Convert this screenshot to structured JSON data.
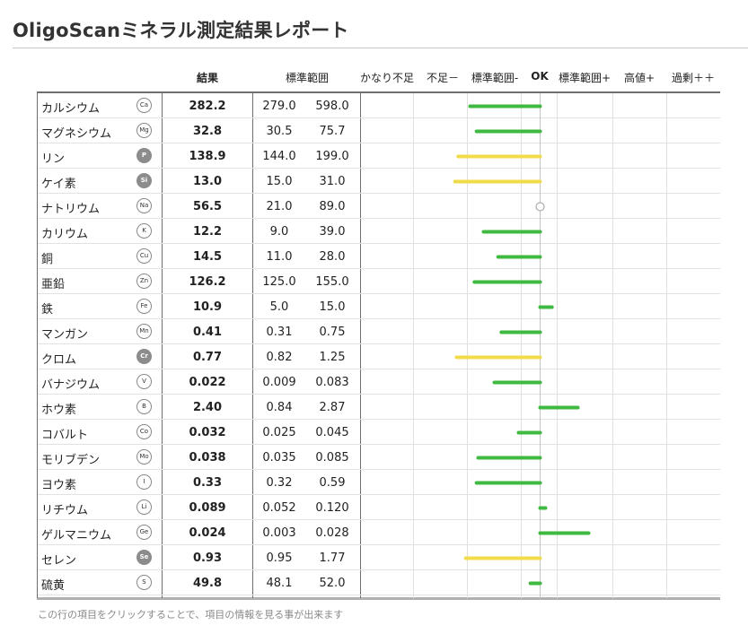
{
  "title": "OligoScanミネラル測定結果レポート",
  "headers": {
    "result": "結果",
    "range": "標準範囲",
    "categories": [
      "かなり不足",
      "不足－",
      "標準範囲-",
      "OK",
      "標準範囲+",
      "高値+",
      "過剰＋＋"
    ]
  },
  "rows": [
    {
      "name": "カルシウム",
      "symbol": "Ca",
      "symbol_filled": false,
      "result": "282.2",
      "low": "279.0",
      "high": "598.0"
    },
    {
      "name": "マグネシウム",
      "symbol": "Mg",
      "symbol_filled": false,
      "result": "32.8",
      "low": "30.5",
      "high": "75.7"
    },
    {
      "name": "リン",
      "symbol": "P",
      "symbol_filled": true,
      "result": "138.9",
      "low": "144.0",
      "high": "199.0"
    },
    {
      "name": "ケイ素",
      "symbol": "Si",
      "symbol_filled": true,
      "result": "13.0",
      "low": "15.0",
      "high": "31.0"
    },
    {
      "name": "ナトリウム",
      "symbol": "Na",
      "symbol_filled": false,
      "result": "56.5",
      "low": "21.0",
      "high": "89.0"
    },
    {
      "name": "カリウム",
      "symbol": "K",
      "symbol_filled": false,
      "result": "12.2",
      "low": "9.0",
      "high": "39.0"
    },
    {
      "name": "銅",
      "symbol": "Cu",
      "symbol_filled": false,
      "result": "14.5",
      "low": "11.0",
      "high": "28.0"
    },
    {
      "name": "亜鉛",
      "symbol": "Zn",
      "symbol_filled": false,
      "result": "126.2",
      "low": "125.0",
      "high": "155.0"
    },
    {
      "name": "鉄",
      "symbol": "Fe",
      "symbol_filled": false,
      "result": "10.9",
      "low": "5.0",
      "high": "15.0"
    },
    {
      "name": "マンガン",
      "symbol": "Mn",
      "symbol_filled": false,
      "result": "0.41",
      "low": "0.31",
      "high": "0.75"
    },
    {
      "name": "クロム",
      "symbol": "Cr",
      "symbol_filled": true,
      "result": "0.77",
      "low": "0.82",
      "high": "1.25"
    },
    {
      "name": "バナジウム",
      "symbol": "V",
      "symbol_filled": false,
      "result": "0.022",
      "low": "0.009",
      "high": "0.083"
    },
    {
      "name": "ホウ素",
      "symbol": "B",
      "symbol_filled": false,
      "result": "2.40",
      "low": "0.84",
      "high": "2.87"
    },
    {
      "name": "コバルト",
      "symbol": "Co",
      "symbol_filled": false,
      "result": "0.032",
      "low": "0.025",
      "high": "0.045"
    },
    {
      "name": "モリブデン",
      "symbol": "Mo",
      "symbol_filled": false,
      "result": "0.038",
      "low": "0.035",
      "high": "0.085"
    },
    {
      "name": "ヨウ素",
      "symbol": "I",
      "symbol_filled": false,
      "result": "0.33",
      "low": "0.32",
      "high": "0.59"
    },
    {
      "name": "リチウム",
      "symbol": "Li",
      "symbol_filled": false,
      "result": "0.089",
      "low": "0.052",
      "high": "0.120"
    },
    {
      "name": "ゲルマニウム",
      "symbol": "Ge",
      "symbol_filled": false,
      "result": "0.024",
      "low": "0.003",
      "high": "0.028"
    },
    {
      "name": "セレン",
      "symbol": "Se",
      "symbol_filled": true,
      "result": "0.93",
      "low": "0.95",
      "high": "1.77"
    },
    {
      "name": "硫黄",
      "symbol": "S",
      "symbol_filled": false,
      "result": "49.8",
      "low": "48.1",
      "high": "52.0"
    }
  ],
  "bars": [
    {
      "symbol": "Ca",
      "level": -1.3,
      "status": "green"
    },
    {
      "symbol": "Mg",
      "level": -1.18,
      "status": "green"
    },
    {
      "symbol": "P",
      "level": -1.52,
      "status": "yellow"
    },
    {
      "symbol": "Si",
      "level": -1.58,
      "status": "yellow"
    },
    {
      "symbol": "Na",
      "level": 0,
      "status": "ok"
    },
    {
      "symbol": "K",
      "level": -1.05,
      "status": "green"
    },
    {
      "symbol": "Cu",
      "level": -0.78,
      "status": "green"
    },
    {
      "symbol": "Zn",
      "level": -1.22,
      "status": "green"
    },
    {
      "symbol": "Fe",
      "level": 0.22,
      "status": "green"
    },
    {
      "symbol": "Mn",
      "level": -0.72,
      "status": "green"
    },
    {
      "symbol": "Cr",
      "level": -1.55,
      "status": "yellow"
    },
    {
      "symbol": "V",
      "level": -0.85,
      "status": "green"
    },
    {
      "symbol": "B",
      "level": 0.7,
      "status": "green"
    },
    {
      "symbol": "Co",
      "level": -0.4,
      "status": "green"
    },
    {
      "symbol": "Mo",
      "level": -1.15,
      "status": "green"
    },
    {
      "symbol": "I",
      "level": -1.18,
      "status": "green"
    },
    {
      "symbol": "Li",
      "level": 0.1,
      "status": "green"
    },
    {
      "symbol": "Ge",
      "level": 0.9,
      "status": "green"
    },
    {
      "symbol": "Se",
      "level": -1.38,
      "status": "yellow"
    },
    {
      "symbol": "S",
      "level": -0.18,
      "status": "green"
    }
  ],
  "colors": {
    "green": "#3fb93f",
    "yellow": "#f0dc4a",
    "ok_marker": "#9a9a9a"
  },
  "footnote": "この行の項目をクリックすることで、項目の情報を見る事が出来ます"
}
